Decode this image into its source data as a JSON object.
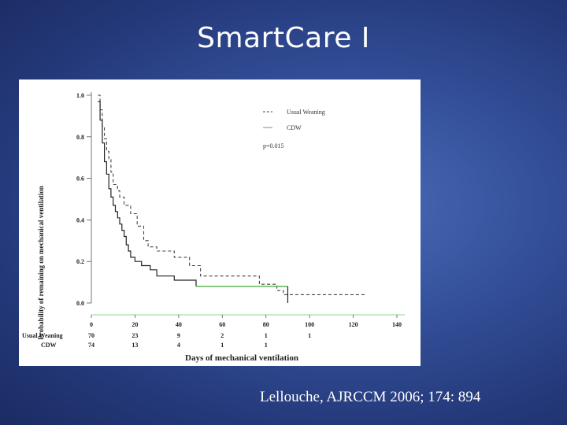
{
  "slide": {
    "title": "SmartCare I",
    "citation": "Lellouche, AJRCCM 2006; 174: 894"
  },
  "chart_data": {
    "type": "line",
    "subtype": "kaplan-meier step curves",
    "title": "",
    "xlabel": "Days of mechanical ventilation",
    "ylabel": "Probability of remaining on mechanical ventilation",
    "xlim": [
      0,
      140
    ],
    "ylim": [
      0,
      1.0
    ],
    "x_ticks": [
      "0",
      "20",
      "40",
      "60",
      "80",
      "100",
      "120",
      "140"
    ],
    "y_ticks": [
      "0.0",
      "0.2",
      "0.4",
      "0.6",
      "0.8",
      "1.0"
    ],
    "grid": false,
    "legend_position": "top-right",
    "annotation": "p=0.015",
    "series": [
      {
        "name": "Usual Weaning",
        "style": "dashed",
        "color": "#444444",
        "points": [
          [
            3,
            1.0
          ],
          [
            4,
            0.93
          ],
          [
            5,
            0.85
          ],
          [
            6,
            0.79
          ],
          [
            7,
            0.73
          ],
          [
            8,
            0.69
          ],
          [
            9,
            0.63
          ],
          [
            10,
            0.57
          ],
          [
            12,
            0.54
          ],
          [
            13,
            0.51
          ],
          [
            15,
            0.47
          ],
          [
            18,
            0.43
          ],
          [
            21,
            0.37
          ],
          [
            24,
            0.3
          ],
          [
            26,
            0.27
          ],
          [
            30,
            0.25
          ],
          [
            38,
            0.22
          ],
          [
            45,
            0.18
          ],
          [
            50,
            0.13
          ],
          [
            77,
            0.09
          ],
          [
            85,
            0.06
          ],
          [
            88,
            0.04
          ],
          [
            126,
            0.04
          ]
        ]
      },
      {
        "name": "CDW",
        "style": "solid",
        "color": "#222222",
        "tail_color": "#5cb85c",
        "points": [
          [
            3,
            0.97
          ],
          [
            4,
            0.88
          ],
          [
            5,
            0.77
          ],
          [
            6,
            0.68
          ],
          [
            7,
            0.62
          ],
          [
            8,
            0.55
          ],
          [
            9,
            0.51
          ],
          [
            10,
            0.47
          ],
          [
            11,
            0.44
          ],
          [
            12,
            0.41
          ],
          [
            13,
            0.38
          ],
          [
            14,
            0.35
          ],
          [
            15,
            0.32
          ],
          [
            16,
            0.28
          ],
          [
            17,
            0.25
          ],
          [
            18,
            0.22
          ],
          [
            20,
            0.2
          ],
          [
            23,
            0.18
          ],
          [
            27,
            0.16
          ],
          [
            30,
            0.13
          ],
          [
            38,
            0.11
          ],
          [
            48,
            0.08
          ],
          [
            90,
            0.08
          ]
        ],
        "drop": [
          90,
          0.0
        ]
      }
    ],
    "at_risk": {
      "times": [
        0,
        20,
        40,
        60,
        80,
        100
      ],
      "rows": [
        {
          "label": "Usual Weaning",
          "counts": [
            "70",
            "23",
            "9",
            "2",
            "1",
            "1"
          ]
        },
        {
          "label": "CDW",
          "counts": [
            "74",
            "13",
            "4",
            "1",
            "1",
            ""
          ]
        }
      ]
    }
  }
}
